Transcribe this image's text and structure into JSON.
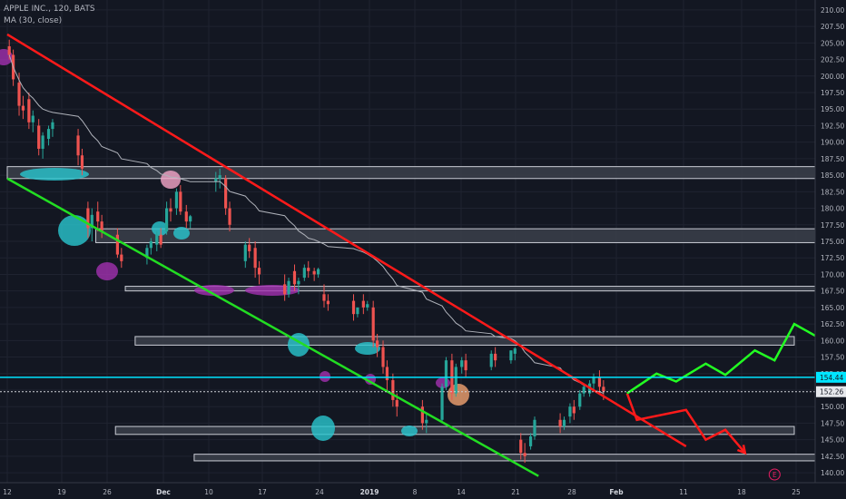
{
  "legend": {
    "symbol_line": "APPLE INC., 120, BATS",
    "ma_line": "MA (30, close)"
  },
  "colors": {
    "background": "#131722",
    "grid": "#1f2330",
    "up": "#26a69a",
    "down": "#ef5350",
    "ma": "#b0b3bb",
    "resistance": "#ff1a1a",
    "support": "#22dd22",
    "zone_fill": "#3b3f4a",
    "zone_stroke": "#c9ccd4",
    "price_line": "#00e5ff",
    "cyan_marker": "#29c7cf",
    "magenta_marker": "#a231b0",
    "pink_marker": "#f5a6c9",
    "orange_marker": "#f2a370",
    "bear_arrow": "#ff1a1a",
    "bull_arrow": "#22ff22"
  },
  "chart_data": {
    "type": "candlestick",
    "title": "APPLE INC., 120, BATS",
    "indicator": "MA (30, close)",
    "x_ticks": [
      "12",
      "19",
      "26",
      "Dec",
      "10",
      "17",
      "24",
      "2019",
      "8",
      "14",
      "21",
      "28",
      "Feb",
      "11",
      "18",
      "25"
    ],
    "y_range": [
      138.5,
      211.5
    ],
    "y_ticks": [
      "210.00",
      "207.50",
      "205.00",
      "202.50",
      "200.00",
      "197.50",
      "195.00",
      "192.50",
      "190.00",
      "187.50",
      "185.00",
      "182.50",
      "180.00",
      "177.50",
      "175.00",
      "172.50",
      "170.00",
      "167.50",
      "165.00",
      "162.50",
      "160.00",
      "157.50",
      "155.00",
      "152.50",
      "150.00",
      "147.50",
      "145.00",
      "142.50",
      "140.00"
    ],
    "price_labels": [
      {
        "label": "154.44",
        "value": 154.44
      },
      {
        "label": "152.26",
        "value": 152.26
      }
    ],
    "zones": [
      {
        "x_start": "2018-11-12",
        "x_end": "2019-02-08",
        "low": 184.5,
        "high": 186.3
      },
      {
        "x_start": "2018-11-21",
        "x_end": "2019-02-06",
        "low": 174.8,
        "high": 176.9
      },
      {
        "x_start": "2018-11-24",
        "x_end": "2019-02-07",
        "low": 167.5,
        "high": 168.2
      },
      {
        "x_start": "2018-11-25",
        "x_end": "2019-01-31",
        "low": 159.3,
        "high": 160.6
      },
      {
        "x_start": "2018-11-23",
        "x_end": "2019-01-31",
        "low": 145.8,
        "high": 147.0
      },
      {
        "x_start": "2018-12-01",
        "x_end": "2019-02-06",
        "low": 141.8,
        "high": 142.8
      }
    ],
    "trendlines": [
      {
        "role": "resistance",
        "from": [
          "2018-11-12",
          206.3
        ],
        "to": [
          "2019-01-20",
          144.0
        ]
      },
      {
        "role": "support",
        "from": [
          "2018-11-12",
          184.5
        ],
        "to": [
          "2019-01-05",
          139.5
        ]
      }
    ],
    "bear_projection": [
      [
        "2019-01-14",
        152.0
      ],
      [
        "2019-01-15",
        148.0
      ],
      [
        "2019-01-20",
        149.5
      ],
      [
        "2019-01-22",
        145.0
      ],
      [
        "2019-01-24",
        146.5
      ],
      [
        "2019-01-26",
        143.0
      ]
    ],
    "bull_projection": [
      [
        "2019-01-14",
        152.0
      ],
      [
        "2019-01-17",
        155.0
      ],
      [
        "2019-01-19",
        153.8
      ],
      [
        "2019-01-22",
        156.5
      ],
      [
        "2019-01-24",
        154.8
      ],
      [
        "2019-01-27",
        158.5
      ],
      [
        "2019-01-29",
        157.0
      ],
      [
        "2019-01-31",
        162.5
      ],
      [
        "2019-02-03",
        160.0
      ],
      [
        "2019-02-07",
        176.0
      ]
    ],
    "event_marker": {
      "date": "2019-01-29",
      "label": "E"
    },
    "candles": [
      {
        "date": "2018-11-12",
        "o": 204.5,
        "h": 205.5,
        "c": 203.2,
        "l": 202.5
      },
      {
        "date": "2018-11-12",
        "o": 203.2,
        "h": 204.0,
        "c": 199.5,
        "l": 198.5
      },
      {
        "date": "2018-11-13",
        "o": 199.0,
        "h": 200.5,
        "c": 195.5,
        "l": 194.0
      },
      {
        "date": "2018-11-13",
        "o": 195.5,
        "h": 197.0,
        "c": 194.8,
        "l": 193.5
      },
      {
        "date": "2018-11-14",
        "o": 196.5,
        "h": 197.5,
        "c": 193.0,
        "l": 192.0
      },
      {
        "date": "2018-11-14",
        "o": 193.0,
        "h": 194.8,
        "c": 194.0,
        "l": 191.5
      },
      {
        "date": "2018-11-15",
        "o": 192.5,
        "h": 193.5,
        "c": 189.0,
        "l": 188.0
      },
      {
        "date": "2018-11-15",
        "o": 189.0,
        "h": 191.5,
        "c": 191.0,
        "l": 187.5
      },
      {
        "date": "2018-11-16",
        "o": 190.5,
        "h": 192.5,
        "c": 192.0,
        "l": 189.5
      },
      {
        "date": "2018-11-16",
        "o": 192.0,
        "h": 193.5,
        "c": 193.0,
        "l": 190.8
      },
      {
        "date": "2018-11-19",
        "o": 191.0,
        "h": 192.0,
        "c": 188.0,
        "l": 186.5
      },
      {
        "date": "2018-11-19",
        "o": 188.0,
        "h": 189.0,
        "c": 186.0,
        "l": 185.0
      },
      {
        "date": "2018-11-20",
        "o": 180.0,
        "h": 181.0,
        "c": 177.0,
        "l": 175.5
      },
      {
        "date": "2018-11-20",
        "o": 177.0,
        "h": 180.0,
        "c": 179.0,
        "l": 175.0
      },
      {
        "date": "2018-11-21",
        "o": 179.5,
        "h": 181.0,
        "c": 178.0,
        "l": 176.5
      },
      {
        "date": "2018-11-21",
        "o": 178.0,
        "h": 179.0,
        "c": 176.5,
        "l": 175.5
      },
      {
        "date": "2018-11-23",
        "o": 176.0,
        "h": 177.0,
        "c": 173.0,
        "l": 172.5
      },
      {
        "date": "2018-11-23",
        "o": 173.0,
        "h": 174.0,
        "c": 172.0,
        "l": 171.0
      },
      {
        "date": "2018-11-26",
        "o": 172.5,
        "h": 174.5,
        "c": 174.0,
        "l": 171.5
      },
      {
        "date": "2018-11-26",
        "o": 174.0,
        "h": 175.5,
        "c": 175.0,
        "l": 173.0
      },
      {
        "date": "2018-11-27",
        "o": 174.5,
        "h": 176.5,
        "c": 176.0,
        "l": 173.5
      },
      {
        "date": "2018-11-27",
        "o": 176.0,
        "h": 177.0,
        "c": 174.5,
        "l": 174.0
      },
      {
        "date": "2018-11-28",
        "o": 176.5,
        "h": 181.0,
        "c": 180.0,
        "l": 176.0
      },
      {
        "date": "2018-11-28",
        "o": 180.0,
        "h": 181.5,
        "c": 179.5,
        "l": 178.0
      },
      {
        "date": "2018-11-29",
        "o": 180.0,
        "h": 183.0,
        "c": 182.5,
        "l": 179.0
      },
      {
        "date": "2018-11-29",
        "o": 182.5,
        "h": 183.5,
        "c": 179.5,
        "l": 179.0
      },
      {
        "date": "2018-11-30",
        "o": 179.5,
        "h": 180.5,
        "c": 178.0,
        "l": 177.0
      },
      {
        "date": "2018-11-30",
        "o": 178.0,
        "h": 179.0,
        "c": 178.8,
        "l": 177.0
      },
      {
        "date": "2018-12-03",
        "o": 184.0,
        "h": 185.5,
        "c": 184.5,
        "l": 182.5
      },
      {
        "date": "2018-12-03",
        "o": 184.5,
        "h": 186.0,
        "c": 185.0,
        "l": 183.0
      },
      {
        "date": "2018-12-04",
        "o": 184.5,
        "h": 185.0,
        "c": 180.0,
        "l": 179.0
      },
      {
        "date": "2018-12-04",
        "o": 180.0,
        "h": 181.0,
        "c": 177.5,
        "l": 176.5
      },
      {
        "date": "2018-12-06",
        "o": 172.0,
        "h": 175.0,
        "c": 174.5,
        "l": 171.0
      },
      {
        "date": "2018-12-06",
        "o": 174.5,
        "h": 175.5,
        "c": 173.5,
        "l": 172.5
      },
      {
        "date": "2018-12-07",
        "o": 174.0,
        "h": 175.0,
        "c": 171.0,
        "l": 169.5
      },
      {
        "date": "2018-12-07",
        "o": 171.0,
        "h": 172.0,
        "c": 170.0,
        "l": 168.5
      },
      {
        "date": "2018-12-10",
        "o": 168.5,
        "h": 170.0,
        "c": 167.0,
        "l": 166.0
      },
      {
        "date": "2018-12-10",
        "o": 167.0,
        "h": 169.5,
        "c": 169.0,
        "l": 166.5
      },
      {
        "date": "2018-12-11",
        "o": 170.5,
        "h": 171.5,
        "c": 168.5,
        "l": 167.5
      },
      {
        "date": "2018-12-11",
        "o": 168.5,
        "h": 169.5,
        "c": 169.0,
        "l": 167.0
      },
      {
        "date": "2018-12-12",
        "o": 169.5,
        "h": 171.5,
        "c": 171.0,
        "l": 169.0
      },
      {
        "date": "2018-12-12",
        "o": 171.0,
        "h": 172.0,
        "c": 170.5,
        "l": 169.5
      },
      {
        "date": "2018-12-13",
        "o": 170.5,
        "h": 171.0,
        "c": 170.0,
        "l": 169.0
      },
      {
        "date": "2018-12-13",
        "o": 170.0,
        "h": 171.0,
        "c": 170.8,
        "l": 169.5
      },
      {
        "date": "2018-12-14",
        "o": 167.0,
        "h": 168.5,
        "c": 166.0,
        "l": 165.0
      },
      {
        "date": "2018-12-14",
        "o": 166.0,
        "h": 167.0,
        "c": 165.5,
        "l": 164.5
      },
      {
        "date": "2018-12-17",
        "o": 166.0,
        "h": 167.0,
        "c": 164.0,
        "l": 163.0
      },
      {
        "date": "2018-12-17",
        "o": 164.0,
        "h": 165.0,
        "c": 165.0,
        "l": 163.5
      },
      {
        "date": "2018-12-18",
        "o": 166.0,
        "h": 167.0,
        "c": 165.0,
        "l": 164.0
      },
      {
        "date": "2018-12-18",
        "o": 165.0,
        "h": 166.0,
        "c": 165.5,
        "l": 164.5
      },
      {
        "date": "2018-12-19",
        "o": 165.0,
        "h": 166.0,
        "c": 160.0,
        "l": 159.0
      },
      {
        "date": "2018-12-19",
        "o": 160.0,
        "h": 161.0,
        "c": 159.0,
        "l": 157.5
      },
      {
        "date": "2018-12-20",
        "o": 159.0,
        "h": 160.0,
        "c": 156.0,
        "l": 155.0
      },
      {
        "date": "2018-12-20",
        "o": 156.0,
        "h": 157.0,
        "c": 154.0,
        "l": 152.5
      },
      {
        "date": "2018-12-21",
        "o": 154.0,
        "h": 155.0,
        "c": 151.0,
        "l": 150.0
      },
      {
        "date": "2018-12-21",
        "o": 151.0,
        "h": 152.0,
        "c": 150.0,
        "l": 148.5
      },
      {
        "date": "2018-12-24",
        "o": 150.0,
        "h": 151.0,
        "c": 147.5,
        "l": 146.5
      },
      {
        "date": "2018-12-24",
        "o": 147.5,
        "h": 149.0,
        "c": 148.0,
        "l": 146.0
      },
      {
        "date": "2018-12-26",
        "o": 148.0,
        "h": 153.5,
        "c": 153.0,
        "l": 147.5
      },
      {
        "date": "2018-12-26",
        "o": 153.0,
        "h": 157.5,
        "c": 157.0,
        "l": 152.5
      },
      {
        "date": "2018-12-27",
        "o": 157.0,
        "h": 158.0,
        "c": 152.0,
        "l": 151.0
      },
      {
        "date": "2018-12-27",
        "o": 152.0,
        "h": 156.5,
        "c": 156.0,
        "l": 151.5
      },
      {
        "date": "2018-12-28",
        "o": 156.0,
        "h": 157.5,
        "c": 157.0,
        "l": 155.0
      },
      {
        "date": "2018-12-28",
        "o": 157.0,
        "h": 158.0,
        "c": 155.5,
        "l": 154.5
      },
      {
        "date": "2018-12-31",
        "o": 156.0,
        "h": 158.5,
        "c": 158.0,
        "l": 155.5
      },
      {
        "date": "2018-12-31",
        "o": 158.0,
        "h": 159.0,
        "c": 157.0,
        "l": 156.0
      },
      {
        "date": "2019-01-02",
        "o": 157.0,
        "h": 158.5,
        "c": 158.5,
        "l": 156.5
      },
      {
        "date": "2019-01-02",
        "o": 158.0,
        "h": 159.0,
        "c": 158.8,
        "l": 157.0
      },
      {
        "date": "2019-01-03",
        "o": 145.0,
        "h": 146.0,
        "c": 143.0,
        "l": 142.0
      },
      {
        "date": "2019-01-03",
        "o": 143.0,
        "h": 144.5,
        "c": 142.5,
        "l": 141.5
      },
      {
        "date": "2019-01-04",
        "o": 144.0,
        "h": 146.0,
        "c": 145.5,
        "l": 143.5
      },
      {
        "date": "2019-01-04",
        "o": 145.5,
        "h": 148.5,
        "c": 148.0,
        "l": 145.0
      },
      {
        "date": "2019-01-07",
        "o": 148.0,
        "h": 149.0,
        "c": 147.0,
        "l": 146.0
      },
      {
        "date": "2019-01-07",
        "o": 147.0,
        "h": 148.5,
        "c": 148.0,
        "l": 146.5
      },
      {
        "date": "2019-01-08",
        "o": 148.5,
        "h": 150.5,
        "c": 150.0,
        "l": 147.5
      },
      {
        "date": "2019-01-08",
        "o": 150.0,
        "h": 151.0,
        "c": 149.0,
        "l": 148.0
      },
      {
        "date": "2019-01-09",
        "o": 150.0,
        "h": 152.5,
        "c": 152.0,
        "l": 149.5
      },
      {
        "date": "2019-01-09",
        "o": 152.0,
        "h": 153.5,
        "c": 153.0,
        "l": 151.5
      },
      {
        "date": "2019-01-10",
        "o": 152.0,
        "h": 154.0,
        "c": 153.5,
        "l": 151.5
      },
      {
        "date": "2019-01-10",
        "o": 153.5,
        "h": 155.0,
        "c": 154.5,
        "l": 152.5
      },
      {
        "date": "2019-01-11",
        "o": 154.5,
        "h": 155.5,
        "c": 153.0,
        "l": 152.0
      },
      {
        "date": "2019-01-11",
        "o": 153.0,
        "h": 154.0,
        "c": 152.3,
        "l": 151.0
      }
    ]
  }
}
